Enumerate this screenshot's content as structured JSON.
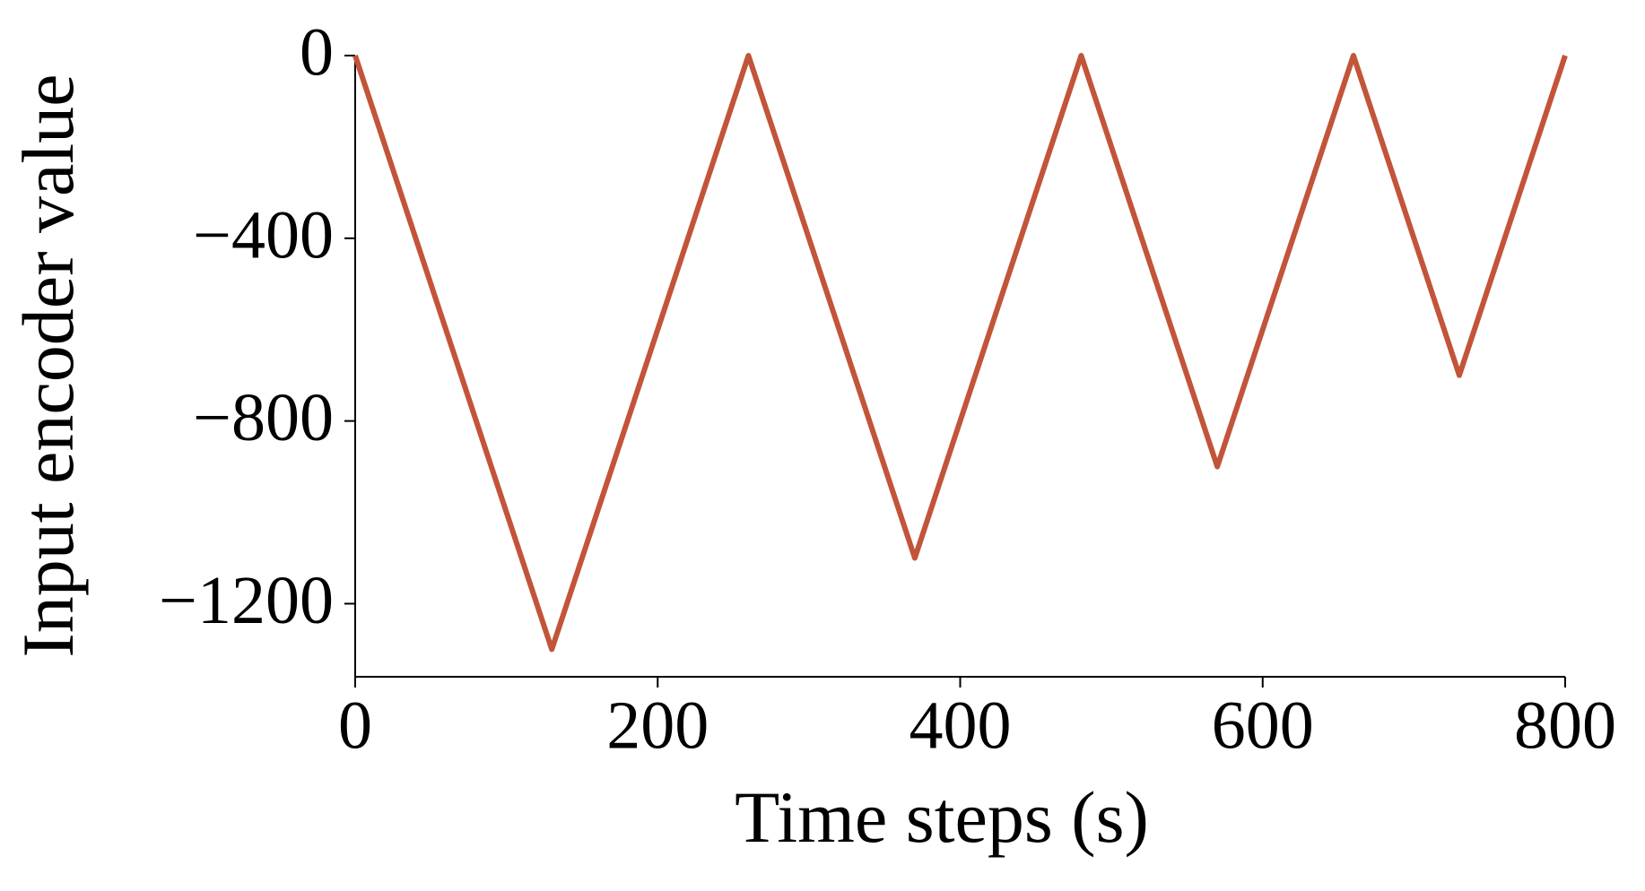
{
  "chart_data": {
    "type": "line",
    "x_label": "Time steps (s)",
    "y_label": "Input encoder value",
    "x": [
      0,
      130,
      260,
      370,
      480,
      570,
      660,
      730,
      800
    ],
    "series": [
      {
        "color": "#c2543a",
        "values": [
          0,
          -1300,
          0,
          -1100,
          0,
          -900,
          0,
          -700,
          0
        ]
      }
    ],
    "xlim": [
      0,
      800
    ],
    "xticks": [
      0,
      200,
      400,
      600,
      800
    ],
    "ylim": [
      -1360,
      0
    ],
    "yticks": [
      0,
      {
        "value": -400,
        "label": "−400"
      },
      {
        "value": -800,
        "label": "−800"
      },
      {
        "value": -1200,
        "label": "−1200"
      }
    ],
    "grid": false
  }
}
